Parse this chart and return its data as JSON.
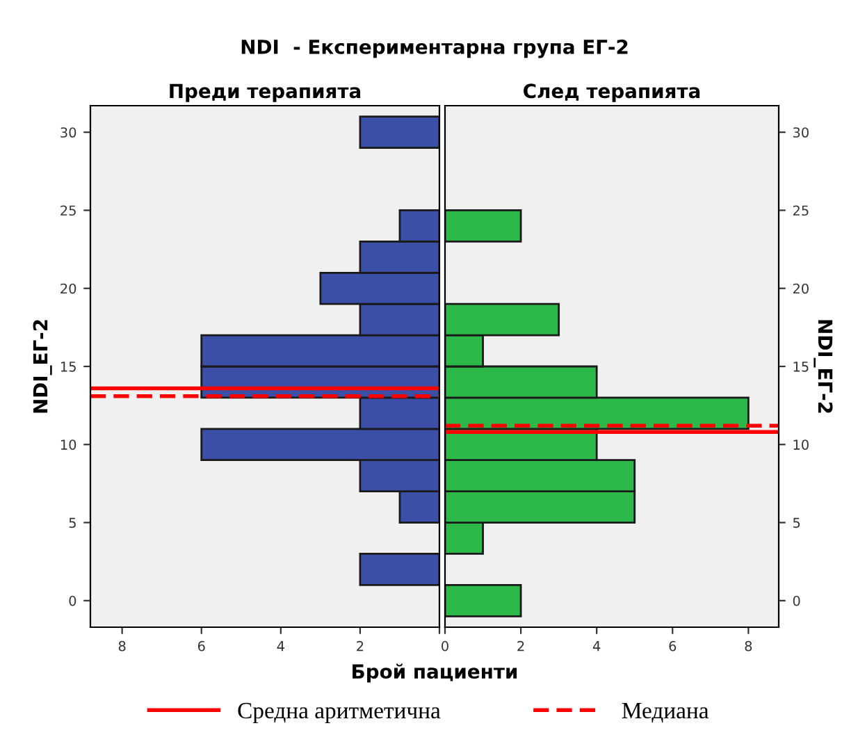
{
  "chart_data": [
    {
      "type": "histogram",
      "orientation": "horizontal",
      "title": "NDI  - Експериментарна група ЕГ-2",
      "subtitle": "Преди терапията",
      "xlabel": "Брой пациенти",
      "ylabel": "NDI_ЕГ-2",
      "bins": [
        -1,
        1,
        3,
        5,
        7,
        9,
        11,
        13,
        15,
        17,
        19,
        21,
        23,
        25,
        27,
        29,
        31
      ],
      "values": [
        0,
        2,
        0,
        1,
        2,
        6,
        2,
        6,
        6,
        2,
        3,
        2,
        1,
        0,
        0,
        2
      ],
      "color": "#3b4fa6",
      "xlim": [
        8.8,
        0
      ],
      "xticks": [
        8,
        6,
        4,
        2,
        {
          "value": 0,
          "label": null
        }
      ],
      "ylim": [
        -1.7,
        31.7
      ],
      "yticks": [
        0,
        5,
        10,
        15,
        20,
        25,
        30
      ],
      "ref_lines": [
        {
          "axis": "y",
          "value": 13.6,
          "label": "Средна аритметична",
          "color": "#ff0000",
          "line_style": "solid"
        },
        {
          "axis": "y",
          "value": 13.1,
          "label": "Медиана",
          "color": "#ff0000",
          "line_style": "dashed"
        }
      ],
      "legend": "bottom",
      "grid": false
    },
    {
      "type": "histogram",
      "orientation": "horizontal",
      "subtitle": "След терапията",
      "y2label": "NDI_ЕГ-2",
      "bins": [
        -1,
        1,
        3,
        5,
        7,
        9,
        11,
        13,
        15,
        17,
        19,
        21,
        23,
        25,
        27,
        29,
        31
      ],
      "values": [
        2,
        0,
        1,
        5,
        5,
        4,
        8,
        4,
        1,
        3,
        0,
        0,
        2,
        0,
        0,
        0
      ],
      "color": "#2db84a",
      "xlim": [
        0,
        8.8
      ],
      "xticks": [
        0,
        2,
        4,
        6,
        8
      ],
      "ylim": [
        -1.7,
        31.7
      ],
      "yticks": [
        0,
        5,
        10,
        15,
        20,
        25,
        30
      ],
      "ref_lines": [
        {
          "axis": "y",
          "value": 10.8,
          "color": "#ff0000",
          "line_style": "solid"
        },
        {
          "axis": "y",
          "value": 11.2,
          "color": "#ff0000",
          "line_style": "dashed"
        }
      ],
      "grid": false
    }
  ]
}
